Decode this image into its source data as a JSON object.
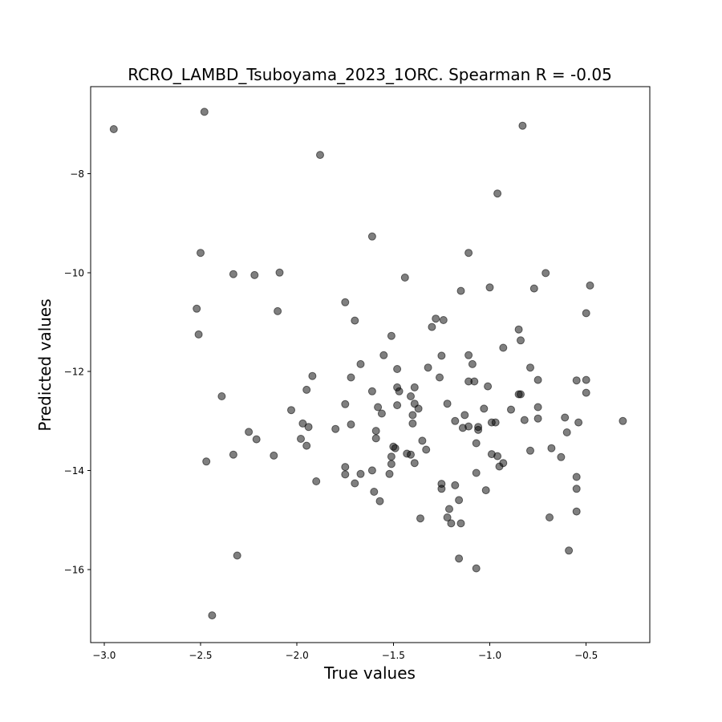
{
  "chart_data": {
    "type": "scatter",
    "title": "RCRO_LAMBD_Tsuboyama_2023_1ORC. Spearman R = -0.05",
    "xlabel": "True values",
    "ylabel": "Predicted values",
    "xlim": [
      -3.07,
      -0.17
    ],
    "ylim": [
      -17.48,
      -6.24
    ],
    "xticks": [
      -3.0,
      -2.5,
      -2.0,
      -1.5,
      -1.0,
      -0.5
    ],
    "xtick_labels": [
      "−3.0",
      "−2.5",
      "−2.0",
      "−1.5",
      "−1.0",
      "−0.5"
    ],
    "yticks": [
      -8,
      -10,
      -12,
      -14,
      -16
    ],
    "ytick_labels": [
      "−8",
      "−10",
      "−12",
      "−14",
      "−16"
    ],
    "grid": false,
    "marker_color": "#000000",
    "marker_alpha": 0.5,
    "points": [
      [
        -2.95,
        -7.1
      ],
      [
        -2.48,
        -6.75
      ],
      [
        -2.5,
        -9.6
      ],
      [
        -2.52,
        -10.73
      ],
      [
        -2.51,
        -11.25
      ],
      [
        -2.47,
        -13.82
      ],
      [
        -2.44,
        -16.93
      ],
      [
        -2.39,
        -12.5
      ],
      [
        -2.33,
        -10.03
      ],
      [
        -2.33,
        -13.68
      ],
      [
        -2.31,
        -15.72
      ],
      [
        -2.25,
        -13.22
      ],
      [
        -2.22,
        -10.05
      ],
      [
        -2.21,
        -13.37
      ],
      [
        -2.12,
        -13.7
      ],
      [
        -2.1,
        -10.78
      ],
      [
        -2.09,
        -10.0
      ],
      [
        -2.03,
        -12.78
      ],
      [
        -1.98,
        -13.36
      ],
      [
        -1.97,
        -13.05
      ],
      [
        -1.95,
        -12.37
      ],
      [
        -1.95,
        -13.5
      ],
      [
        -1.94,
        -13.12
      ],
      [
        -1.92,
        -12.09
      ],
      [
        -1.9,
        -14.22
      ],
      [
        -1.88,
        -7.62
      ],
      [
        -1.8,
        -13.16
      ],
      [
        -1.75,
        -10.6
      ],
      [
        -1.75,
        -12.66
      ],
      [
        -1.75,
        -13.93
      ],
      [
        -1.75,
        -14.08
      ],
      [
        -1.72,
        -12.12
      ],
      [
        -1.72,
        -13.07
      ],
      [
        -1.7,
        -10.97
      ],
      [
        -1.7,
        -14.26
      ],
      [
        -1.67,
        -11.85
      ],
      [
        -1.67,
        -14.07
      ],
      [
        -1.61,
        -9.27
      ],
      [
        -1.61,
        -12.4
      ],
      [
        -1.61,
        -14.0
      ],
      [
        -1.6,
        -14.43
      ],
      [
        -1.59,
        -13.2
      ],
      [
        -1.59,
        -13.35
      ],
      [
        -1.58,
        -12.72
      ],
      [
        -1.57,
        -14.62
      ],
      [
        -1.56,
        -12.85
      ],
      [
        -1.55,
        -11.67
      ],
      [
        -1.52,
        -14.07
      ],
      [
        -1.51,
        -11.28
      ],
      [
        -1.51,
        -13.72
      ],
      [
        -1.51,
        -13.87
      ],
      [
        -1.5,
        -13.52
      ],
      [
        -1.49,
        -13.55
      ],
      [
        -1.48,
        -12.68
      ],
      [
        -1.48,
        -11.95
      ],
      [
        -1.48,
        -12.32
      ],
      [
        -1.47,
        -12.4
      ],
      [
        -1.44,
        -10.1
      ],
      [
        -1.43,
        -13.66
      ],
      [
        -1.41,
        -13.68
      ],
      [
        -1.41,
        -12.5
      ],
      [
        -1.4,
        -13.05
      ],
      [
        -1.4,
        -12.88
      ],
      [
        -1.39,
        -12.65
      ],
      [
        -1.39,
        -12.32
      ],
      [
        -1.39,
        -13.85
      ],
      [
        -1.37,
        -12.75
      ],
      [
        -1.36,
        -14.97
      ],
      [
        -1.35,
        -13.4
      ],
      [
        -1.33,
        -13.58
      ],
      [
        -1.32,
        -11.92
      ],
      [
        -1.3,
        -11.1
      ],
      [
        -1.28,
        -10.93
      ],
      [
        -1.26,
        -12.12
      ],
      [
        -1.25,
        -11.68
      ],
      [
        -1.25,
        -14.27
      ],
      [
        -1.25,
        -14.37
      ],
      [
        -1.24,
        -10.96
      ],
      [
        -1.22,
        -12.65
      ],
      [
        -1.22,
        -14.95
      ],
      [
        -1.21,
        -14.78
      ],
      [
        -1.2,
        -15.07
      ],
      [
        -1.18,
        -13.0
      ],
      [
        -1.18,
        -14.3
      ],
      [
        -1.16,
        -15.78
      ],
      [
        -1.16,
        -14.6
      ],
      [
        -1.15,
        -10.37
      ],
      [
        -1.15,
        -15.07
      ],
      [
        -1.14,
        -13.14
      ],
      [
        -1.13,
        -12.88
      ],
      [
        -1.11,
        -9.6
      ],
      [
        -1.11,
        -11.67
      ],
      [
        -1.11,
        -12.2
      ],
      [
        -1.11,
        -13.11
      ],
      [
        -1.09,
        -11.85
      ],
      [
        -1.08,
        -12.2
      ],
      [
        -1.07,
        -13.45
      ],
      [
        -1.07,
        -14.05
      ],
      [
        -1.07,
        -15.98
      ],
      [
        -1.06,
        -13.12
      ],
      [
        -1.06,
        -13.18
      ],
      [
        -1.03,
        -12.75
      ],
      [
        -1.02,
        -14.4
      ],
      [
        -1.01,
        -12.3
      ],
      [
        -1.0,
        -10.3
      ],
      [
        -0.99,
        -13.03
      ],
      [
        -0.99,
        -13.67
      ],
      [
        -0.97,
        -13.03
      ],
      [
        -0.96,
        -8.4
      ],
      [
        -0.96,
        -13.71
      ],
      [
        -0.95,
        -13.92
      ],
      [
        -0.93,
        -11.52
      ],
      [
        -0.93,
        -13.85
      ],
      [
        -0.89,
        -12.77
      ],
      [
        -0.85,
        -11.15
      ],
      [
        -0.85,
        -12.46
      ],
      [
        -0.84,
        -12.46
      ],
      [
        -0.84,
        -11.37
      ],
      [
        -0.83,
        -7.03
      ],
      [
        -0.82,
        -12.98
      ],
      [
        -0.79,
        -11.92
      ],
      [
        -0.79,
        -13.6
      ],
      [
        -0.77,
        -10.32
      ],
      [
        -0.75,
        -12.17
      ],
      [
        -0.75,
        -12.72
      ],
      [
        -0.75,
        -12.95
      ],
      [
        -0.71,
        -10.01
      ],
      [
        -0.69,
        -14.95
      ],
      [
        -0.68,
        -13.55
      ],
      [
        -0.63,
        -13.73
      ],
      [
        -0.61,
        -12.93
      ],
      [
        -0.6,
        -13.23
      ],
      [
        -0.59,
        -15.62
      ],
      [
        -0.55,
        -12.18
      ],
      [
        -0.55,
        -14.13
      ],
      [
        -0.55,
        -14.37
      ],
      [
        -0.55,
        -14.83
      ],
      [
        -0.54,
        -13.03
      ],
      [
        -0.5,
        -12.17
      ],
      [
        -0.5,
        -12.43
      ],
      [
        -0.5,
        -10.82
      ],
      [
        -0.48,
        -10.26
      ],
      [
        -0.31,
        -13.0
      ]
    ]
  }
}
